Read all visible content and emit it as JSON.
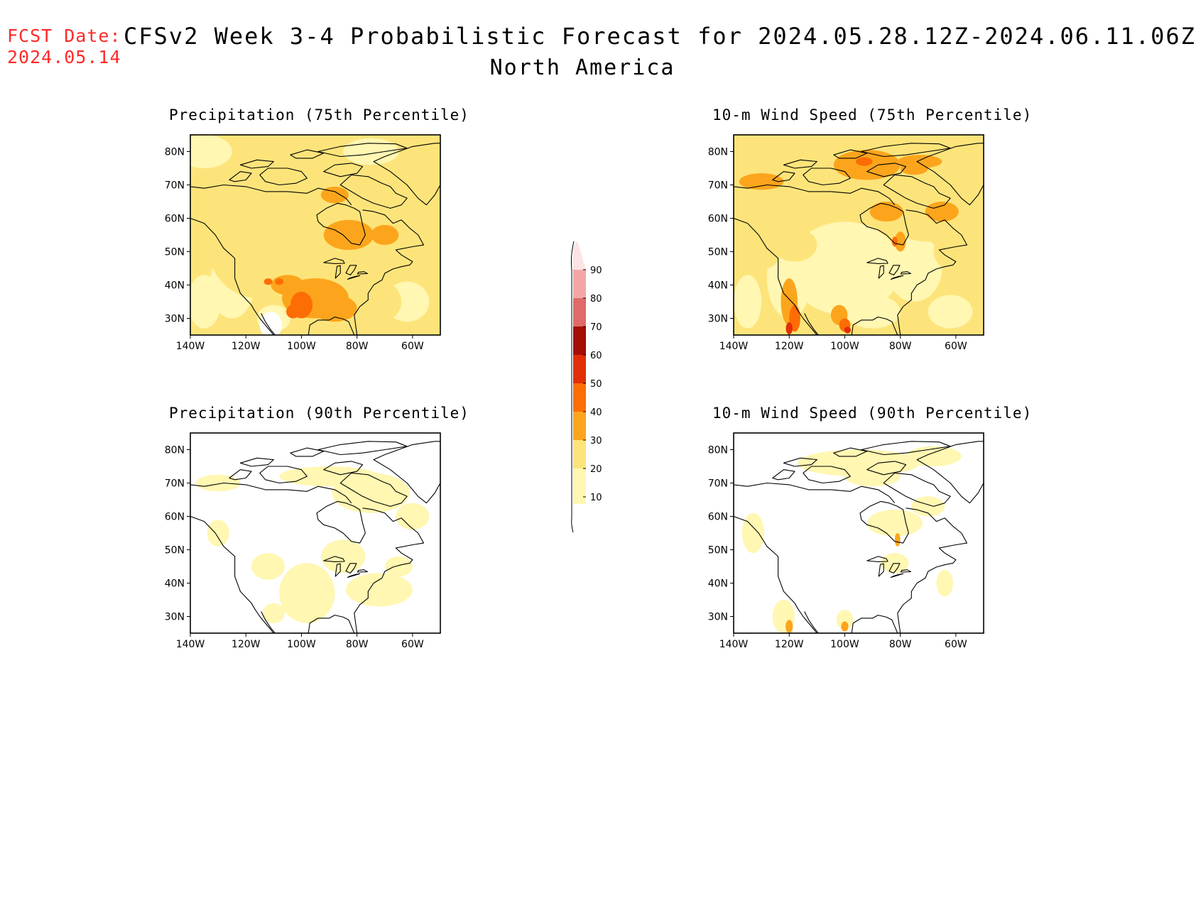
{
  "header": {
    "fcst_label": "FCST Date:",
    "fcst_date": "2024.05.14",
    "title": "CFSv2 Week 3-4 Probabilistic Forecast for 2024.05.28.12Z-2024.06.11.06Z",
    "region": "North America"
  },
  "panels": [
    {
      "title": "Precipitation (75th Percentile)",
      "variable": "precipitation",
      "percentile": 75
    },
    {
      "title": "10-m Wind Speed (75th Percentile)",
      "variable": "wind",
      "percentile": 75
    },
    {
      "title": "Precipitation (90th Percentile)",
      "variable": "precipitation",
      "percentile": 90
    },
    {
      "title": "10-m Wind Speed (90th Percentile)",
      "variable": "wind",
      "percentile": 90
    }
  ],
  "axes": {
    "lat_labels": [
      "80N",
      "70N",
      "60N",
      "50N",
      "40N",
      "30N"
    ],
    "lon_labels": [
      "140W",
      "120W",
      "100W",
      "80W",
      "60W"
    ]
  },
  "colorbar": {
    "levels": [
      "10",
      "20",
      "30",
      "40",
      "50",
      "60",
      "70",
      "80",
      "90"
    ],
    "colors": [
      "#fff7b2",
      "#fde47a",
      "#fca51c",
      "#fd6d05",
      "#e22e06",
      "#a50c04",
      "#e06a6a",
      "#f4a6a6",
      "#fde3e3"
    ]
  }
}
